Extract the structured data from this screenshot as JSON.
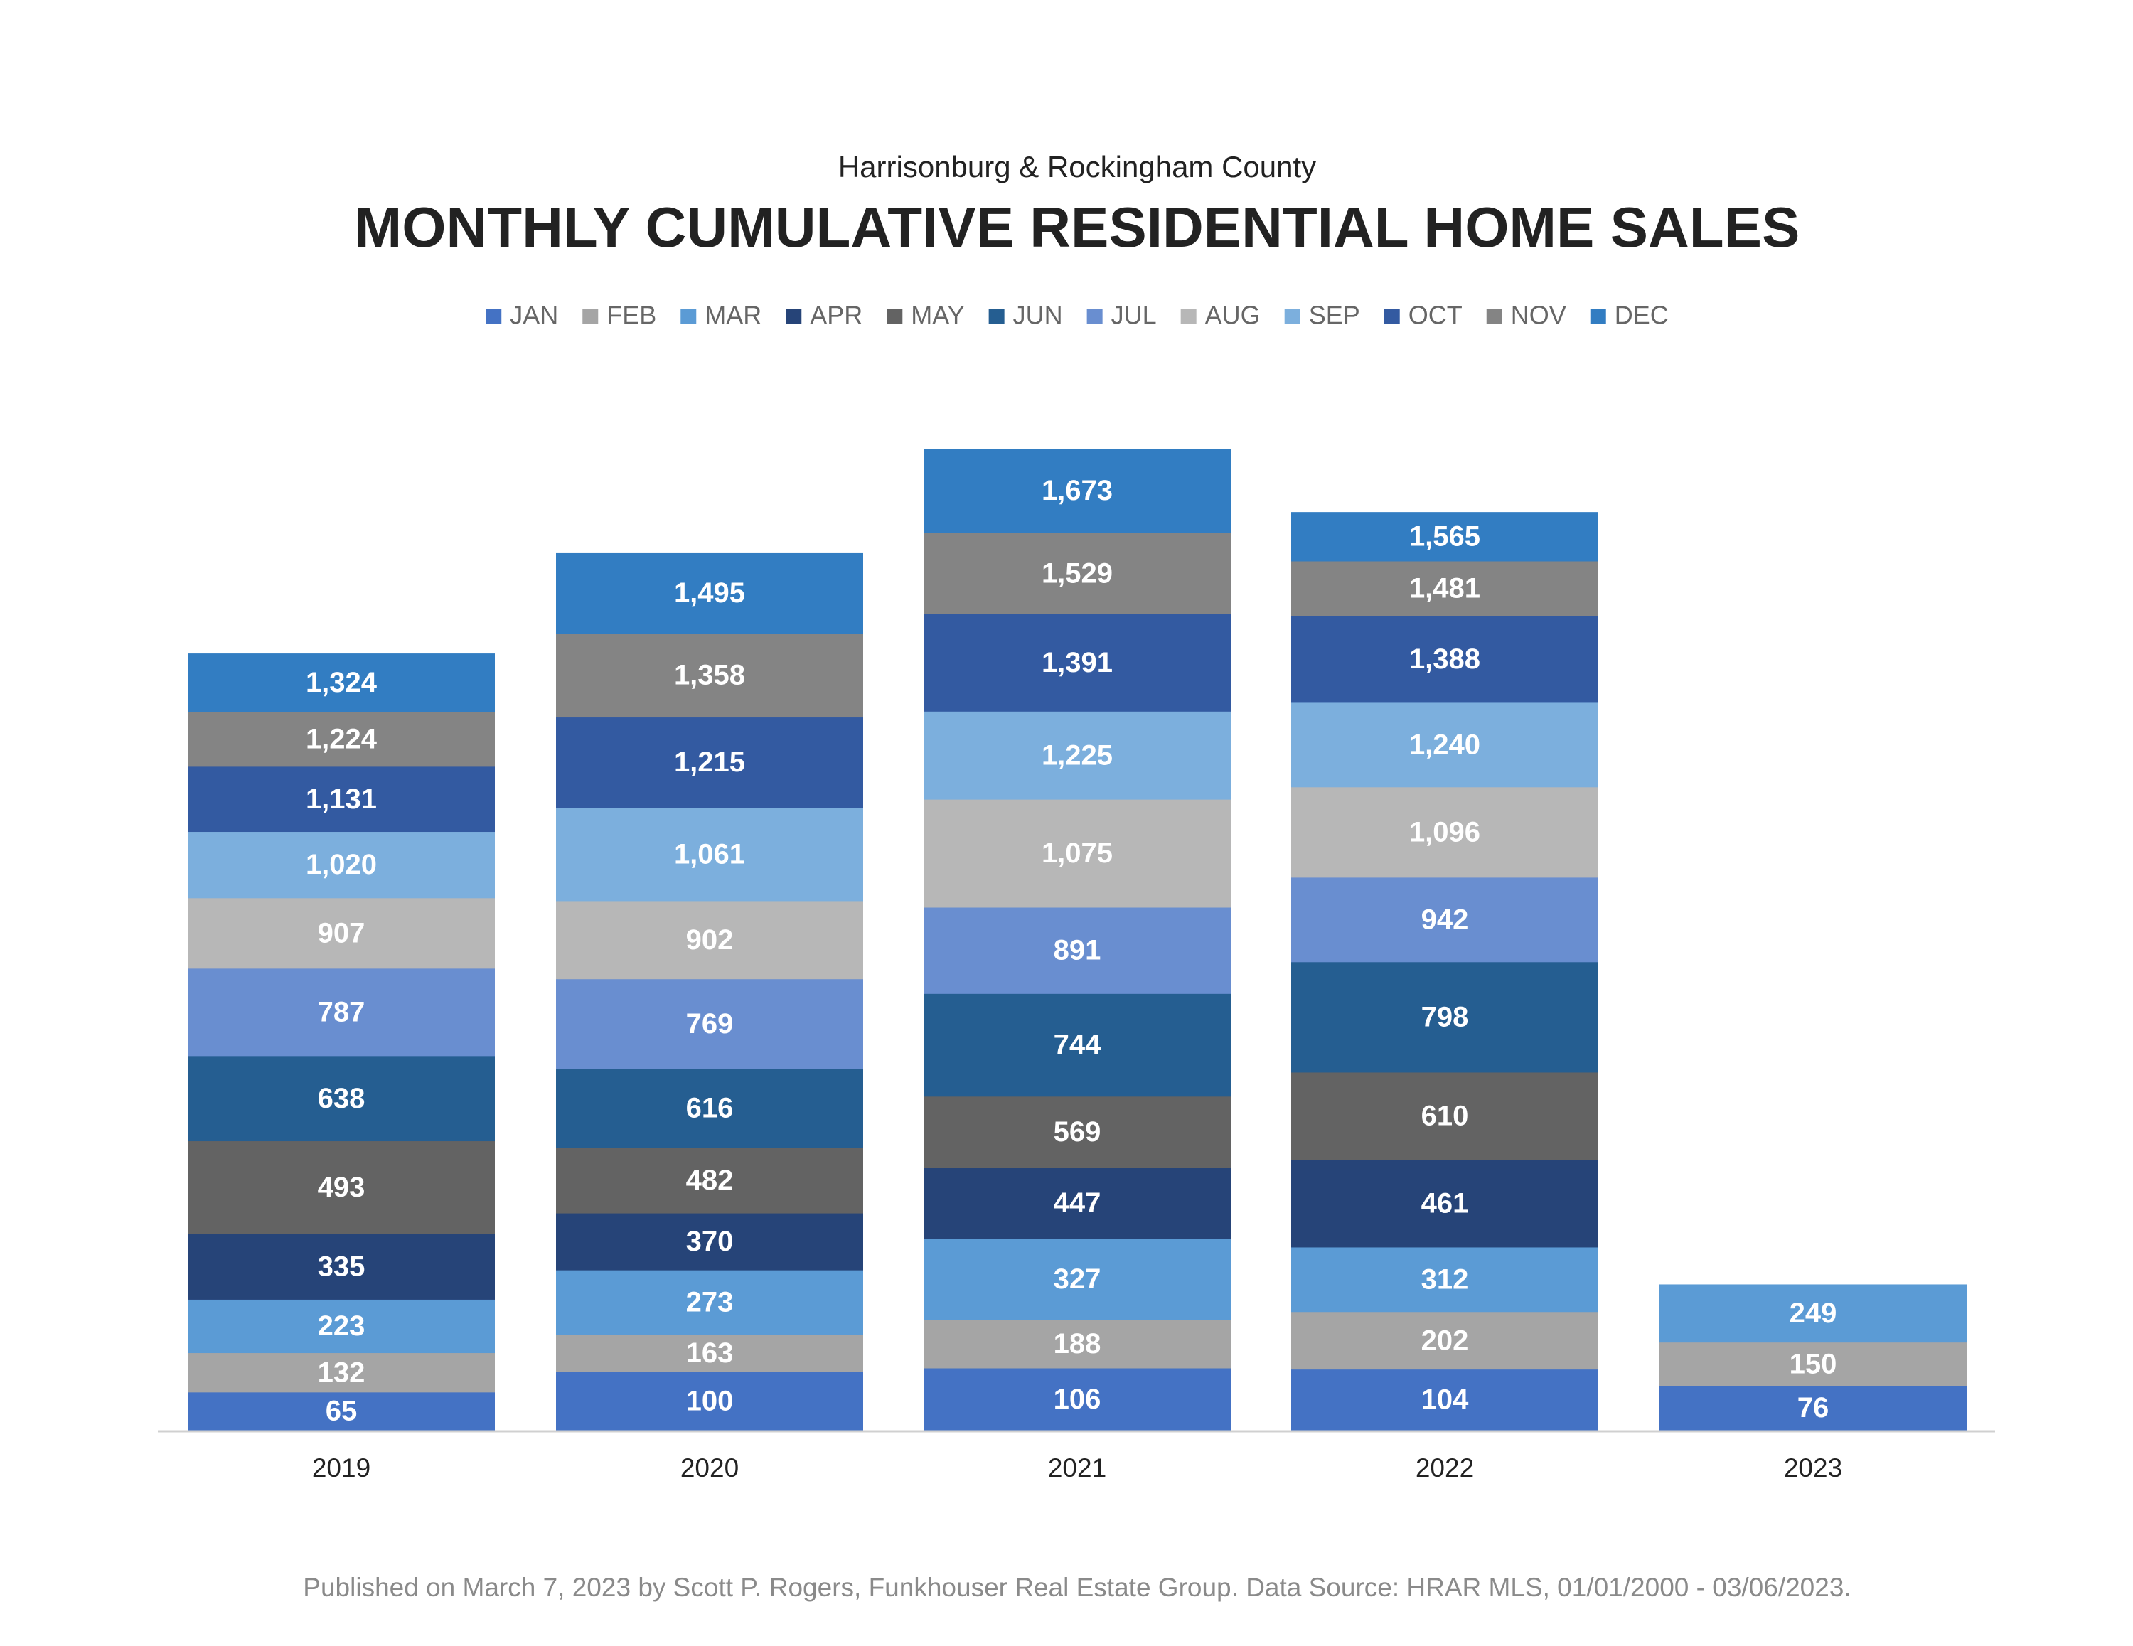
{
  "chart_data": {
    "type": "bar",
    "subtitle": "Harrisonburg & Rockingham County",
    "title": "MONTHLY CUMULATIVE RESIDENTIAL HOME SALES",
    "footnote": "Published on March 7, 2023 by Scott P. Rogers, Funkhouser Real Estate Group. Data Source: HRAR MLS, 01/01/2000 - 03/06/2023.",
    "categories": [
      "2019",
      "2020",
      "2021",
      "2022",
      "2023"
    ],
    "legend": "top",
    "series": [
      {
        "name": "JAN",
        "color": "#4472c4",
        "values": [
          65,
          100,
          106,
          104,
          76
        ],
        "value_labels": [
          "65",
          "100",
          "106",
          "104",
          "76"
        ]
      },
      {
        "name": "FEB",
        "color": "#a5a5a5",
        "values": [
          132,
          163,
          188,
          202,
          150
        ],
        "value_labels": [
          "132",
          "163",
          "188",
          "202",
          "150"
        ]
      },
      {
        "name": "MAR",
        "color": "#5b9bd5",
        "values": [
          223,
          273,
          327,
          312,
          249
        ],
        "value_labels": [
          "223",
          "273",
          "327",
          "312",
          "249"
        ]
      },
      {
        "name": "APR",
        "color": "#264478",
        "values": [
          335,
          370,
          447,
          461,
          null
        ],
        "value_labels": [
          "335",
          "370",
          "447",
          "461",
          null
        ]
      },
      {
        "name": "MAY",
        "color": "#636363",
        "values": [
          493,
          482,
          569,
          610,
          null
        ],
        "value_labels": [
          "493",
          "482",
          "569",
          "610",
          null
        ]
      },
      {
        "name": "JUN",
        "color": "#255e91",
        "values": [
          638,
          616,
          744,
          798,
          null
        ],
        "value_labels": [
          "638",
          "616",
          "744",
          "798",
          null
        ]
      },
      {
        "name": "JUL",
        "color": "#698ed0",
        "values": [
          787,
          769,
          891,
          942,
          null
        ],
        "value_labels": [
          "787",
          "769",
          "891",
          "942",
          null
        ]
      },
      {
        "name": "AUG",
        "color": "#b7b7b7",
        "values": [
          907,
          902,
          1075,
          1096,
          null
        ],
        "value_labels": [
          "907",
          "902",
          "1,075",
          "1,096",
          null
        ]
      },
      {
        "name": "SEP",
        "color": "#7cafdd",
        "values": [
          1020,
          1061,
          1225,
          1240,
          null
        ],
        "value_labels": [
          "1,020",
          "1,061",
          "1,225",
          "1,240",
          null
        ]
      },
      {
        "name": "OCT",
        "color": "#335aa1",
        "values": [
          1131,
          1215,
          1391,
          1388,
          null
        ],
        "value_labels": [
          "1,131",
          "1,215",
          "1,391",
          "1,388",
          null
        ]
      },
      {
        "name": "NOV",
        "color": "#848484",
        "values": [
          1224,
          1358,
          1529,
          1481,
          null
        ],
        "value_labels": [
          "1,224",
          "1,358",
          "1,529",
          "1,481",
          null
        ]
      },
      {
        "name": "DEC",
        "color": "#327dc2",
        "values": [
          1324,
          1495,
          1673,
          1565,
          null
        ],
        "value_labels": [
          "1,324",
          "1,495",
          "1,673",
          "1,565",
          null
        ]
      }
    ]
  }
}
